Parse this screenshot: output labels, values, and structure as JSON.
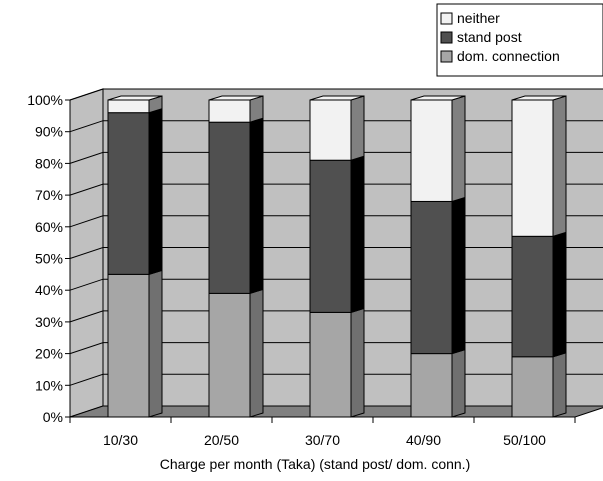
{
  "chart_data": {
    "type": "bar",
    "stacked": true,
    "percent": true,
    "three_d": true,
    "categories": [
      "10/30",
      "20/50",
      "30/70",
      "40/90",
      "50/100"
    ],
    "series": [
      {
        "name": "dom. connection",
        "values": [
          45,
          39,
          33,
          20,
          19
        ],
        "color": "#a6a6a6"
      },
      {
        "name": "stand post",
        "values": [
          51,
          54,
          48,
          48,
          38
        ],
        "color": "#505050"
      },
      {
        "name": "neither",
        "values": [
          4,
          7,
          19,
          32,
          43
        ],
        "color": "#f2f2f2"
      }
    ],
    "legend_order": [
      "neither",
      "stand post",
      "dom. connection"
    ],
    "xlabel": "Charge per month (Taka) (stand post/ dom. conn.)",
    "ylabel": "",
    "ylim": [
      0,
      100
    ],
    "yticks": [
      "0%",
      "10%",
      "20%",
      "30%",
      "40%",
      "50%",
      "60%",
      "70%",
      "80%",
      "90%",
      "100%"
    ],
    "grid": true,
    "legend_position": "top-right",
    "wall_color": "#c0c0c0",
    "floor_color": "#808080"
  }
}
